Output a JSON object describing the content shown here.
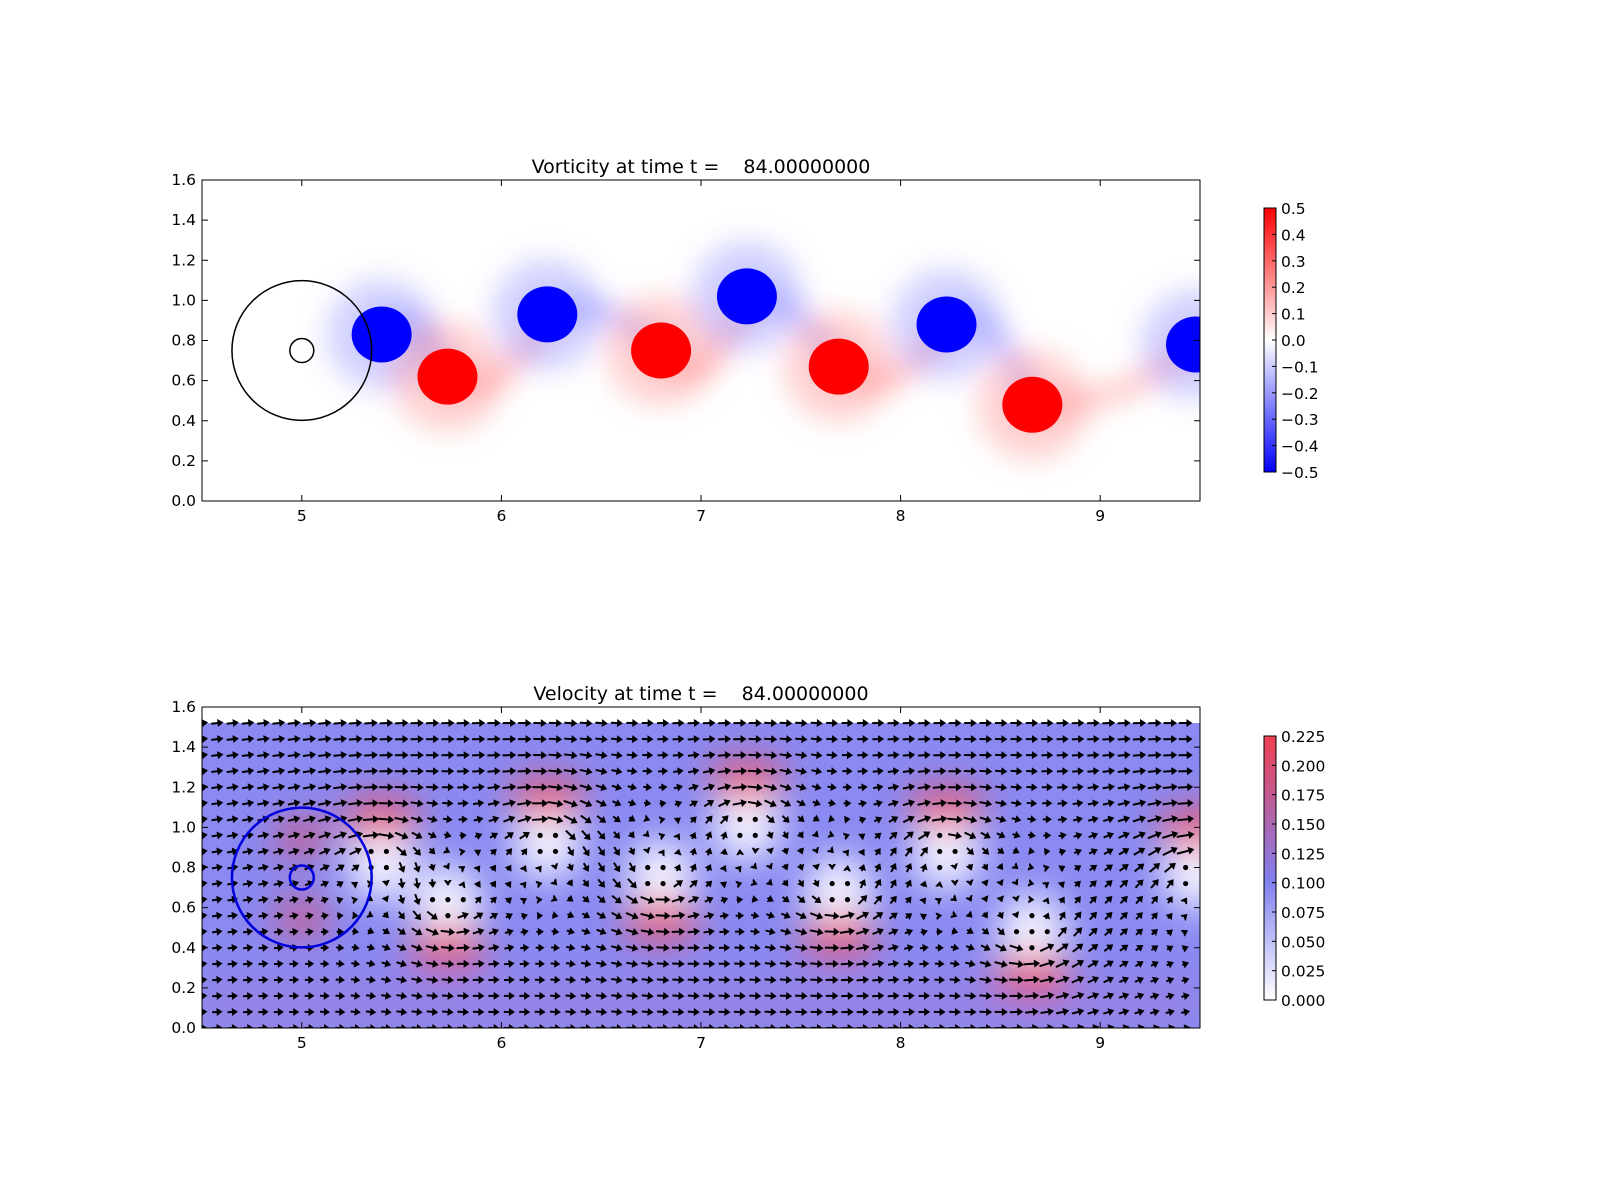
{
  "chart_data": [
    {
      "type": "heatmap",
      "title": "Vorticity at time t =    84.00000000",
      "xlabel": "",
      "ylabel": "",
      "xlim": [
        4.5,
        9.5
      ],
      "ylim": [
        0.0,
        1.6
      ],
      "x_ticks": [
        "5",
        "6",
        "7",
        "8",
        "9"
      ],
      "y_ticks": [
        "0.0",
        "0.2",
        "0.4",
        "0.6",
        "0.8",
        "1.0",
        "1.2",
        "1.4",
        "1.6"
      ],
      "colormap": "bwr",
      "colorbar": {
        "range": [
          -0.5,
          0.5
        ],
        "ticks": [
          "0.5",
          "0.4",
          "0.3",
          "0.2",
          "0.1",
          "0.0",
          "−0.1",
          "−0.2",
          "−0.3",
          "−0.4",
          "−0.5"
        ],
        "colors": [
          "#0000ff",
          "#ffffff",
          "#ff0000"
        ]
      },
      "circles": [
        {
          "center": [
            5.0,
            0.75
          ],
          "radius": 0.35,
          "color": "#000000"
        },
        {
          "center": [
            5.0,
            0.75
          ],
          "radius": 0.06,
          "color": "#000000"
        }
      ],
      "vortices": [
        {
          "x": 5.4,
          "y": 0.83,
          "value": -0.5
        },
        {
          "x": 5.73,
          "y": 0.62,
          "value": 0.5
        },
        {
          "x": 6.23,
          "y": 0.93,
          "value": -0.5
        },
        {
          "x": 6.8,
          "y": 0.75,
          "value": 0.5
        },
        {
          "x": 7.23,
          "y": 1.02,
          "value": -0.5
        },
        {
          "x": 7.69,
          "y": 0.67,
          "value": 0.5
        },
        {
          "x": 8.23,
          "y": 0.88,
          "value": -0.5
        },
        {
          "x": 8.66,
          "y": 0.48,
          "value": 0.5
        },
        {
          "x": 9.48,
          "y": 0.78,
          "value": -0.5
        }
      ]
    },
    {
      "type": "heatmap",
      "subtype": "quiver",
      "title": "Velocity at time t =    84.00000000",
      "xlabel": "",
      "ylabel": "",
      "xlim": [
        4.5,
        9.5
      ],
      "ylim": [
        0.0,
        1.6
      ],
      "x_ticks": [
        "5",
        "6",
        "7",
        "8",
        "9"
      ],
      "y_ticks": [
        "0.0",
        "0.2",
        "0.4",
        "0.6",
        "0.8",
        "1.0",
        "1.2",
        "1.4",
        "1.6"
      ],
      "data_ymax": 1.52,
      "colormap": "white-blue-red",
      "colorbar": {
        "range": [
          0.0,
          0.225
        ],
        "ticks": [
          "0.225",
          "0.200",
          "0.175",
          "0.150",
          "0.125",
          "0.100",
          "0.075",
          "0.050",
          "0.025",
          "0.000"
        ],
        "colors": [
          "#ffffff",
          "#8080f0",
          "#f04050"
        ]
      },
      "circles": [
        {
          "center": [
            5.0,
            0.75
          ],
          "radius": 0.35,
          "color": "#0000dd"
        },
        {
          "center": [
            5.0,
            0.75
          ],
          "radius": 0.06,
          "color": "#0000dd"
        }
      ],
      "arrow_color": "#000000"
    }
  ]
}
